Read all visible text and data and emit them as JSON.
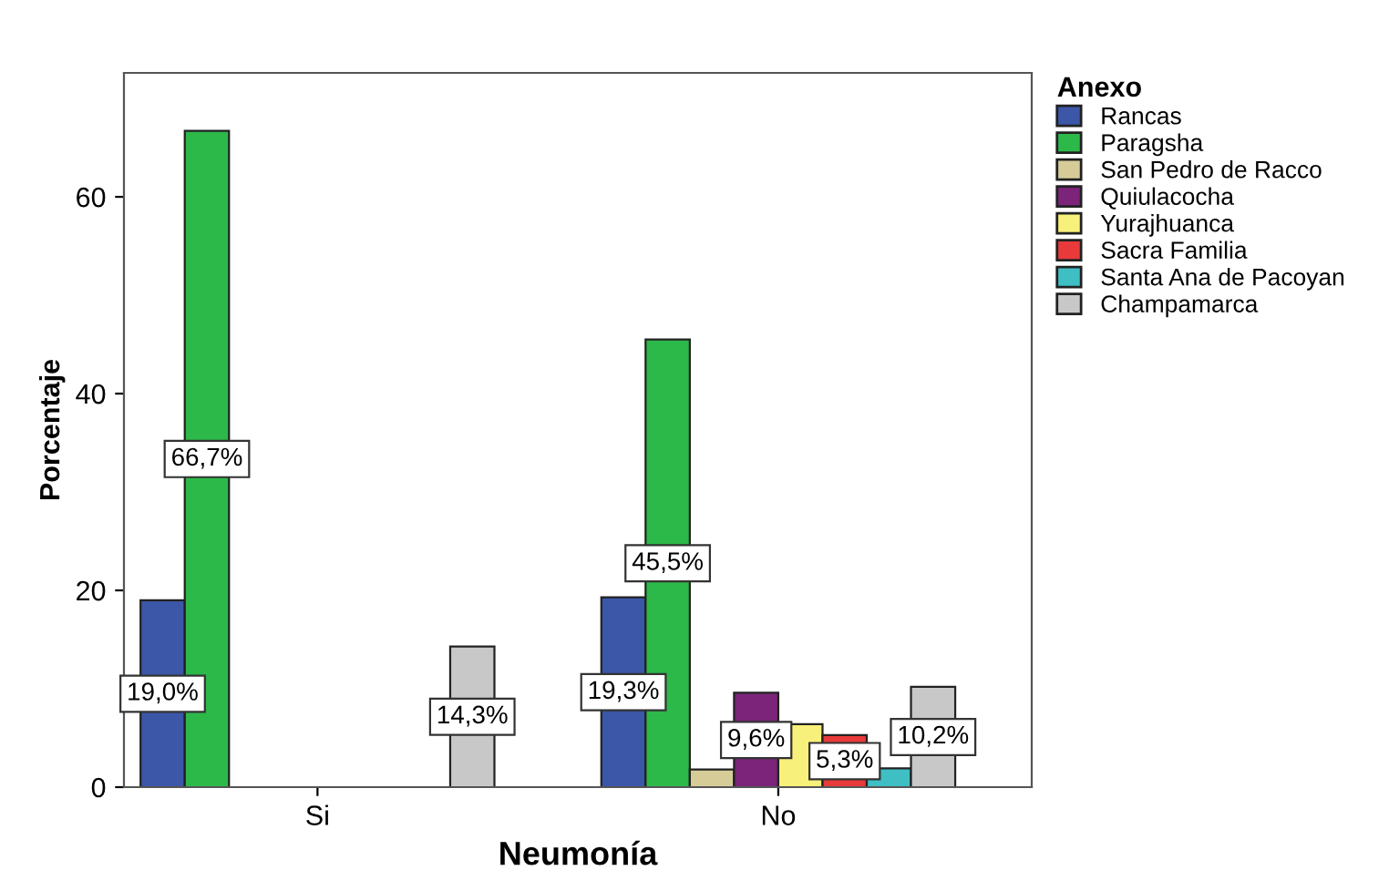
{
  "chart_data": {
    "type": "bar",
    "xlabel": "Neumonía",
    "ylabel": "Porcentaje",
    "legend_title": "Anexo",
    "legend": "right",
    "categories": [
      "Si",
      "No"
    ],
    "ylim": [
      0,
      72.6
    ],
    "yticks": [
      0,
      20,
      40,
      60
    ],
    "grid": false,
    "series": [
      {
        "name": "Rancas",
        "color": "#3c56a8",
        "values": [
          19.0,
          19.3
        ],
        "value_labels": [
          "19,0%",
          "19,3%"
        ]
      },
      {
        "name": "Paragsha",
        "color": "#2db84a",
        "values": [
          66.7,
          45.5
        ],
        "value_labels": [
          "66,7%",
          "45,5%"
        ]
      },
      {
        "name": "San Pedro de Racco",
        "color": "#d6cc98",
        "values": [
          null,
          1.8
        ],
        "value_labels": [
          null,
          null
        ]
      },
      {
        "name": "Quiulacocha",
        "color": "#7b2479",
        "values": [
          null,
          9.6
        ],
        "value_labels": [
          null,
          "9,6%"
        ]
      },
      {
        "name": "Yurajhuanca",
        "color": "#f7f07a",
        "values": [
          null,
          6.4
        ],
        "value_labels": [
          null,
          null
        ]
      },
      {
        "name": "Sacra Familia",
        "color": "#e83a3a",
        "values": [
          null,
          5.3
        ],
        "value_labels": [
          null,
          "5,3%"
        ]
      },
      {
        "name": "Santa Ana de Pacoyan",
        "color": "#3fbfc4",
        "values": [
          null,
          1.9
        ],
        "value_labels": [
          null,
          null
        ]
      },
      {
        "name": "Champamarca",
        "color": "#c8c8c8",
        "values": [
          14.3,
          10.2
        ],
        "value_labels": [
          "14,3%",
          "10,2%"
        ]
      }
    ]
  }
}
